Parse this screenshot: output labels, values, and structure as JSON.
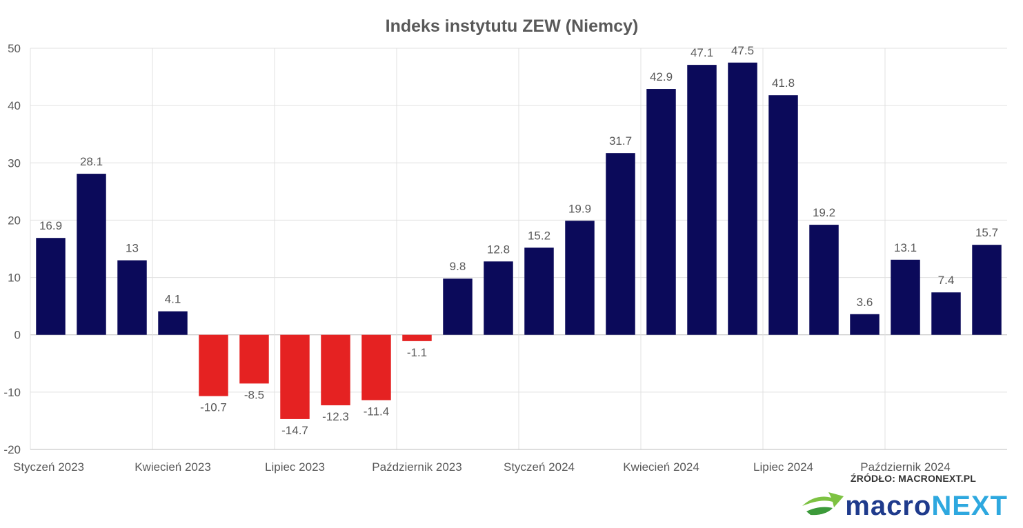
{
  "chart_data": {
    "type": "bar",
    "title": "Indeks instytutu ZEW (Niemcy)",
    "xlabel": "",
    "ylabel": "",
    "ylim": [
      -20,
      50
    ],
    "yticks": [
      -20,
      -10,
      0,
      10,
      20,
      30,
      40,
      50
    ],
    "grid": true,
    "legend": "none",
    "positive_color": "#0b0a5a",
    "negative_color": "#e52222",
    "x_tick_labels": [
      {
        "index": 0,
        "label": "Styczeń 2023"
      },
      {
        "index": 3,
        "label": "Kwiecień 2023"
      },
      {
        "index": 6,
        "label": "Lipiec 2023"
      },
      {
        "index": 9,
        "label": "Październik 2023"
      },
      {
        "index": 12,
        "label": "Styczeń 2024"
      },
      {
        "index": 15,
        "label": "Kwiecień 2024"
      },
      {
        "index": 18,
        "label": "Lipiec 2024"
      },
      {
        "index": 21,
        "label": "Październik 2024"
      }
    ],
    "values": [
      16.9,
      28.1,
      13,
      4.1,
      -10.7,
      -8.5,
      -14.7,
      -12.3,
      -11.4,
      -1.1,
      9.8,
      12.8,
      15.2,
      19.9,
      31.7,
      42.9,
      47.1,
      47.5,
      41.8,
      19.2,
      3.6,
      13.1,
      7.4,
      15.7
    ]
  },
  "branding": {
    "source": "ŹRÓDŁO: MACRONEXT.PL",
    "brand_part1": "macro",
    "brand_part2": "NEXT",
    "icon": "macronext-swoosh-arrow-icon"
  }
}
